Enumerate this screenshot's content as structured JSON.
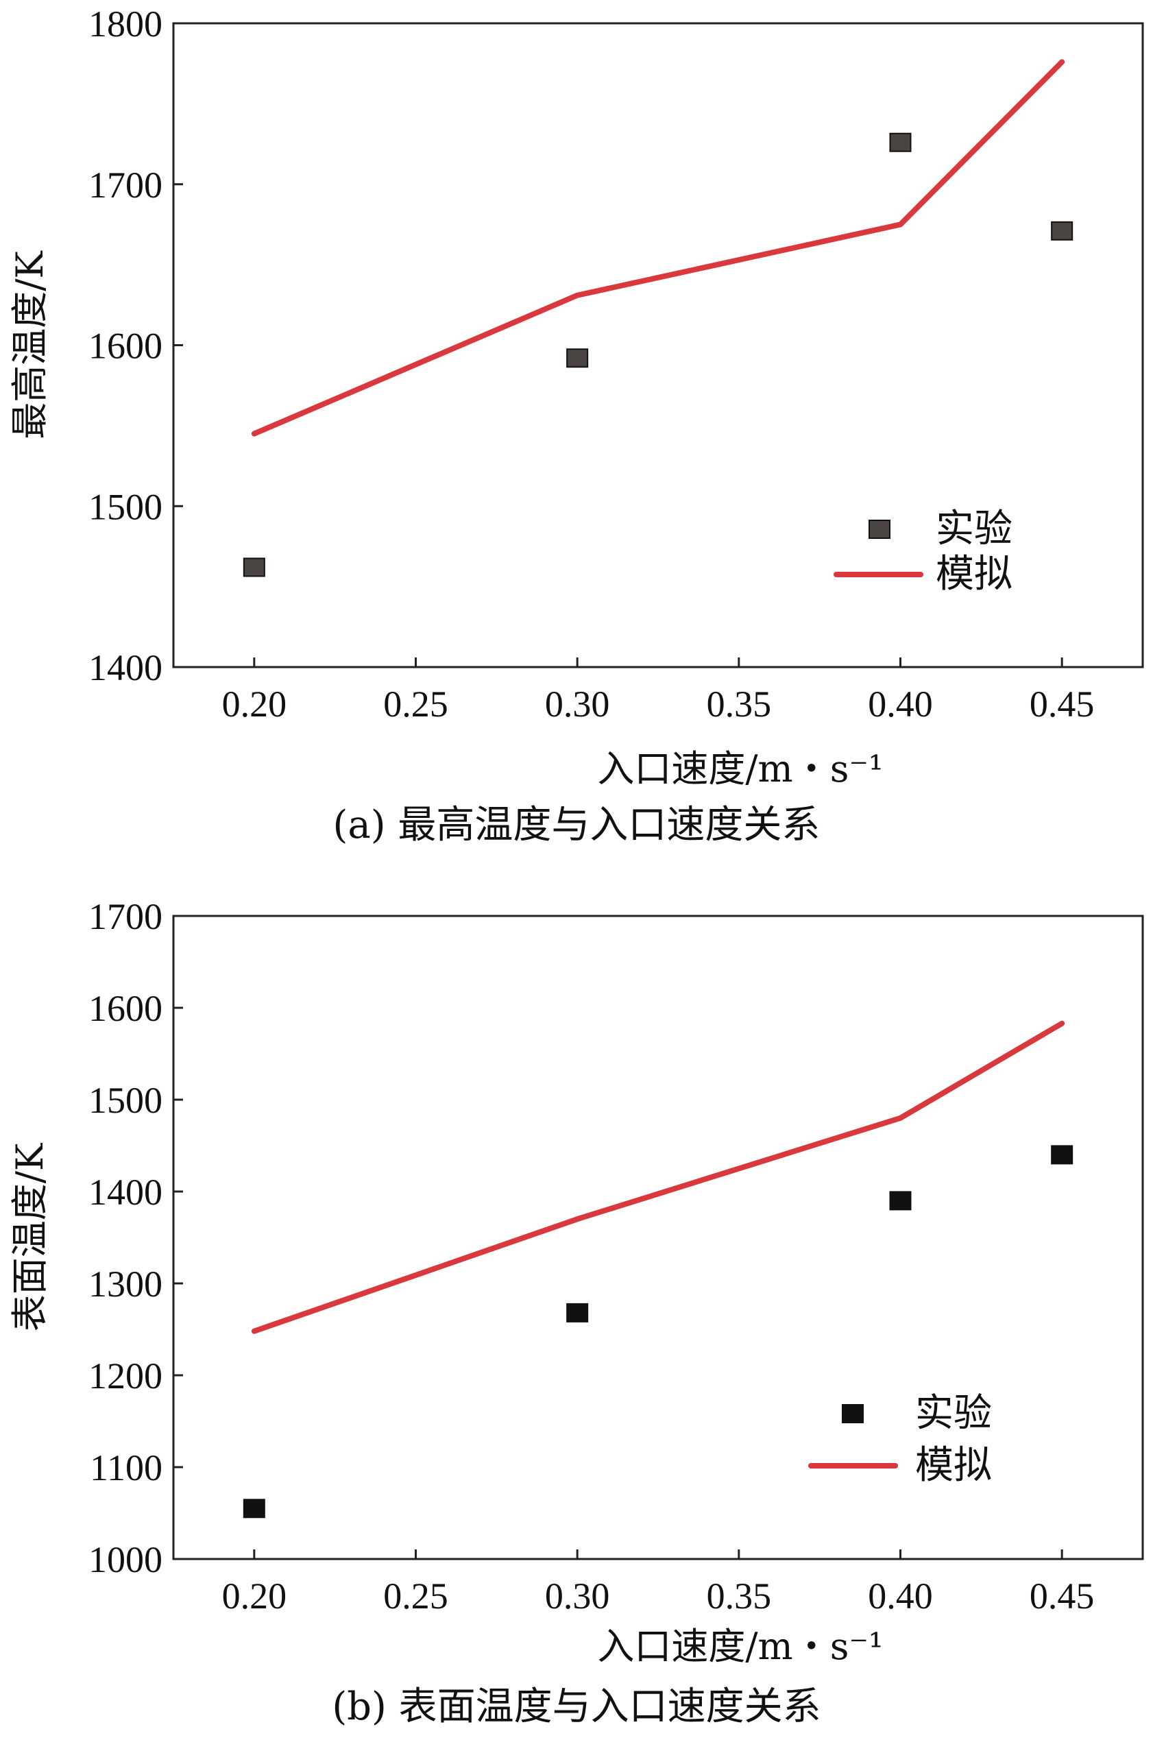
{
  "chart_data": [
    {
      "type": "line",
      "panel": "a",
      "caption": "(a) 最高温度与入口速度关系",
      "xlabel": "入口速度/m・s⁻¹",
      "ylabel": "最高温度/K",
      "xlim": [
        0.175,
        0.475
      ],
      "ylim": [
        1400,
        1800
      ],
      "xticks": [
        0.2,
        0.25,
        0.3,
        0.35,
        0.4,
        0.45
      ],
      "xtick_labels": [
        "0.20",
        "0.25",
        "0.30",
        "0.35",
        "0.40",
        "0.45"
      ],
      "yticks": [
        1400,
        1500,
        1600,
        1700,
        1800
      ],
      "ytick_labels": [
        "1400",
        "1500",
        "1600",
        "1700",
        "1800"
      ],
      "grid": false,
      "legend_position": "bottom-right",
      "series": [
        {
          "name": "实验",
          "kind": "scatter",
          "color": "#4a4443",
          "x": [
            0.2,
            0.3,
            0.4,
            0.45
          ],
          "y": [
            1462,
            1592,
            1726,
            1671
          ]
        },
        {
          "name": "模拟",
          "kind": "line",
          "color": "#d9393c",
          "x": [
            0.2,
            0.3,
            0.4,
            0.45
          ],
          "y": [
            1545,
            1631,
            1675,
            1776
          ]
        }
      ]
    },
    {
      "type": "line",
      "panel": "b",
      "caption": "(b) 表面温度与入口速度关系",
      "xlabel": "入口速度/m・s⁻¹",
      "ylabel": "表面温度/K",
      "xlim": [
        0.175,
        0.475
      ],
      "ylim": [
        1000,
        1700
      ],
      "xticks": [
        0.2,
        0.25,
        0.3,
        0.35,
        0.4,
        0.45
      ],
      "xtick_labels": [
        "0.20",
        "0.25",
        "0.30",
        "0.35",
        "0.40",
        "0.45"
      ],
      "yticks": [
        1000,
        1100,
        1200,
        1300,
        1400,
        1500,
        1600,
        1700
      ],
      "ytick_labels": [
        "1000",
        "1100",
        "1200",
        "1300",
        "1400",
        "1500",
        "1600",
        "1700"
      ],
      "grid": false,
      "legend_position": "bottom-right",
      "series": [
        {
          "name": "实验",
          "kind": "scatter",
          "color": "#111111",
          "x": [
            0.2,
            0.3,
            0.4,
            0.45
          ],
          "y": [
            1055,
            1268,
            1390,
            1440
          ]
        },
        {
          "name": "模拟",
          "kind": "line",
          "color": "#d9393c",
          "x": [
            0.2,
            0.3,
            0.4,
            0.45
          ],
          "y": [
            1248,
            1370,
            1480,
            1583
          ]
        }
      ]
    }
  ]
}
